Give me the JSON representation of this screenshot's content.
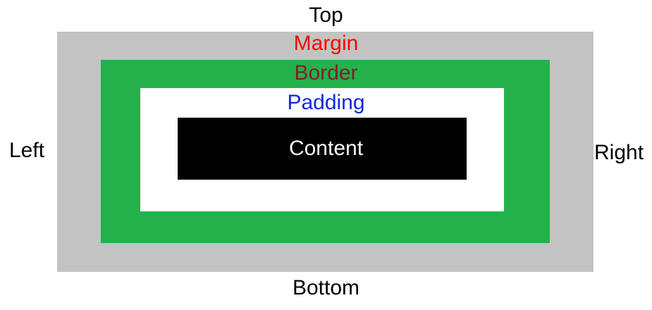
{
  "colors": {
    "margin_fill": "#c3c3c3",
    "border_fill": "#23b14c",
    "padding_fill": "#ffffff",
    "content_fill": "#000000",
    "margin_text": "#ff0000",
    "border_text": "#7f1f2a",
    "padding_text": "#0b2bdc",
    "content_text": "#ffffff",
    "side_text": "#000000"
  },
  "sides": {
    "top": "Top",
    "bottom": "Bottom",
    "left": "Left",
    "right": "Right"
  },
  "layers": {
    "margin": "Margin",
    "border": "Border",
    "padding": "Padding",
    "content": "Content"
  }
}
